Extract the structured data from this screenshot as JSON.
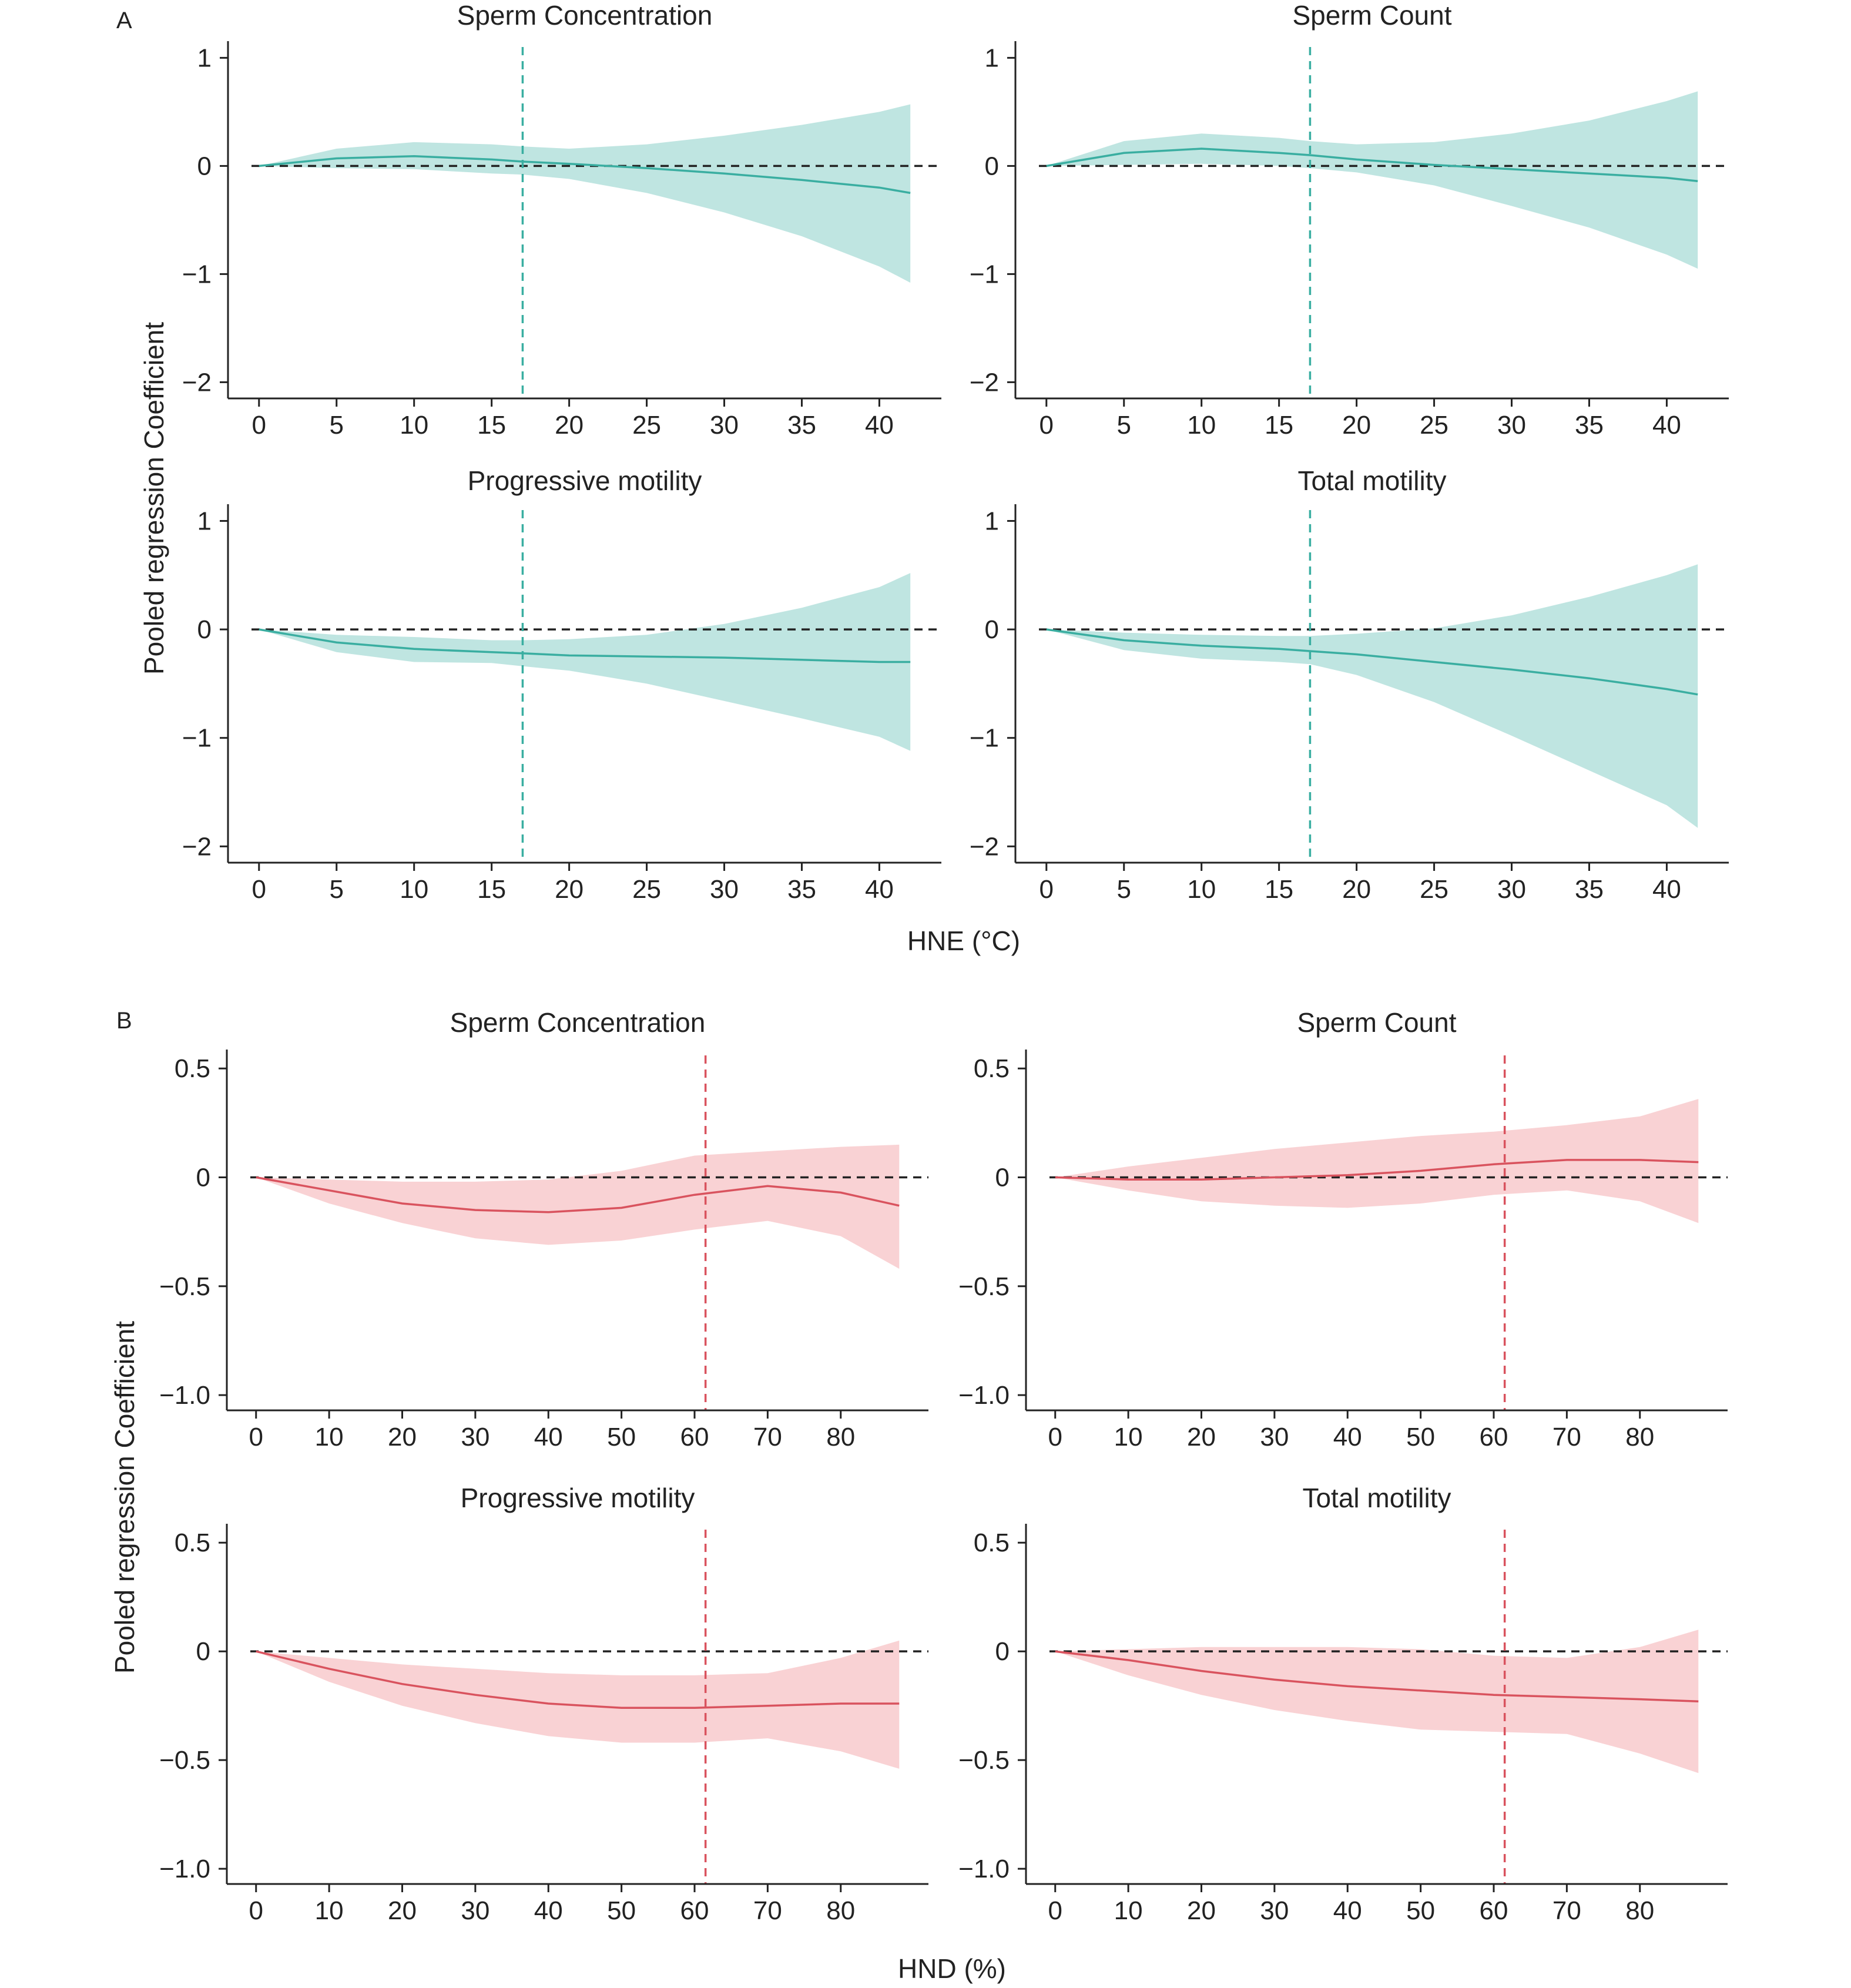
{
  "panels": [
    {
      "letter": "A",
      "shared_xlabel": "HNE (°C)",
      "shared_ylabel": "Pooled regression Coefficient",
      "theme": {
        "line": "#3aaea1",
        "band": "#bfe5e1",
        "vline": "#3aaea1"
      }
    },
    {
      "letter": "B",
      "shared_xlabel": "HND (%)",
      "shared_ylabel": "Pooled regression Coefficient",
      "theme": {
        "line": "#d9535e",
        "band": "#f9d2d4",
        "vline": "#d9535e"
      }
    }
  ],
  "chart_data": [
    {
      "type": "line",
      "panel": "A",
      "title": "Sperm Concentration",
      "xticks": [
        0,
        5,
        10,
        15,
        20,
        25,
        30,
        35,
        40
      ],
      "xlim": [
        -2,
        44
      ],
      "yticks": [
        1,
        0,
        -1,
        -2
      ],
      "ytick_labels": [
        "1",
        "0",
        "−1",
        "−2"
      ],
      "ylim": [
        -2.15,
        1.1
      ],
      "vline": 17,
      "hline": 0,
      "series": [
        {
          "x": [
            0,
            5,
            10,
            15,
            17,
            20,
            25,
            30,
            35,
            40,
            42
          ],
          "y": [
            0,
            0.07,
            0.09,
            0.06,
            0.04,
            0.02,
            -0.02,
            -0.07,
            -0.13,
            -0.2,
            -0.25
          ],
          "lower": [
            0,
            -0.02,
            -0.03,
            -0.07,
            -0.08,
            -0.12,
            -0.25,
            -0.43,
            -0.65,
            -0.93,
            -1.08
          ],
          "upper": [
            0,
            0.16,
            0.22,
            0.2,
            0.18,
            0.16,
            0.2,
            0.28,
            0.38,
            0.5,
            0.57
          ]
        }
      ]
    },
    {
      "type": "line",
      "panel": "A",
      "title": "Sperm Count",
      "xticks": [
        0,
        5,
        10,
        15,
        20,
        25,
        30,
        35,
        40
      ],
      "xlim": [
        -2,
        44
      ],
      "yticks": [
        1,
        0,
        -1,
        -2
      ],
      "ytick_labels": [
        "1",
        "0",
        "−1",
        "−2"
      ],
      "ylim": [
        -2.15,
        1.1
      ],
      "vline": 17,
      "hline": 0,
      "series": [
        {
          "x": [
            0,
            5,
            10,
            15,
            17,
            20,
            25,
            30,
            35,
            40,
            42
          ],
          "y": [
            0,
            0.12,
            0.16,
            0.12,
            0.1,
            0.06,
            0.01,
            -0.03,
            -0.07,
            -0.11,
            -0.14
          ],
          "lower": [
            0,
            0.01,
            0.02,
            0,
            -0.02,
            -0.06,
            -0.18,
            -0.37,
            -0.57,
            -0.82,
            -0.95
          ],
          "upper": [
            0,
            0.23,
            0.3,
            0.26,
            0.23,
            0.2,
            0.22,
            0.3,
            0.42,
            0.6,
            0.69
          ]
        }
      ]
    },
    {
      "type": "line",
      "panel": "A",
      "title": "Progressive motility",
      "xticks": [
        0,
        5,
        10,
        15,
        20,
        25,
        30,
        35,
        40
      ],
      "xlim": [
        -2,
        44
      ],
      "yticks": [
        1,
        0,
        -1,
        -2
      ],
      "ytick_labels": [
        "1",
        "0",
        "−1",
        "−2"
      ],
      "ylim": [
        -2.15,
        1.1
      ],
      "vline": 17,
      "hline": 0,
      "series": [
        {
          "x": [
            0,
            5,
            10,
            15,
            17,
            20,
            25,
            30,
            35,
            40,
            42
          ],
          "y": [
            0,
            -0.12,
            -0.18,
            -0.21,
            -0.22,
            -0.24,
            -0.25,
            -0.26,
            -0.28,
            -0.3,
            -0.3
          ],
          "lower": [
            0,
            -0.21,
            -0.3,
            -0.31,
            -0.34,
            -0.38,
            -0.5,
            -0.66,
            -0.82,
            -0.99,
            -1.12
          ],
          "upper": [
            0,
            -0.05,
            -0.07,
            -0.1,
            -0.1,
            -0.09,
            -0.05,
            0.05,
            0.2,
            0.39,
            0.52
          ]
        }
      ]
    },
    {
      "type": "line",
      "panel": "A",
      "title": "Total motility",
      "xticks": [
        0,
        5,
        10,
        15,
        20,
        25,
        30,
        35,
        40
      ],
      "xlim": [
        -2,
        44
      ],
      "yticks": [
        1,
        0,
        -1,
        -2
      ],
      "ytick_labels": [
        "1",
        "0",
        "−1",
        "−2"
      ],
      "ylim": [
        -2.15,
        1.1
      ],
      "vline": 17,
      "hline": 0,
      "series": [
        {
          "x": [
            0,
            5,
            10,
            15,
            17,
            20,
            25,
            30,
            35,
            40,
            42
          ],
          "y": [
            0,
            -0.1,
            -0.15,
            -0.18,
            -0.2,
            -0.23,
            -0.3,
            -0.37,
            -0.45,
            -0.55,
            -0.6
          ],
          "lower": [
            0,
            -0.19,
            -0.27,
            -0.3,
            -0.32,
            -0.42,
            -0.67,
            -0.98,
            -1.3,
            -1.62,
            -1.83
          ],
          "upper": [
            0,
            -0.03,
            -0.05,
            -0.06,
            -0.06,
            -0.04,
            0.01,
            0.13,
            0.3,
            0.5,
            0.6
          ]
        }
      ]
    },
    {
      "type": "line",
      "panel": "B",
      "title": "Sperm Concentration",
      "xticks": [
        0,
        10,
        20,
        30,
        40,
        50,
        60,
        70,
        80
      ],
      "xlim": [
        -4,
        92
      ],
      "yticks": [
        0.5,
        0,
        -0.5,
        -1.0
      ],
      "ytick_labels": [
        "0.5",
        "0",
        "−0.5",
        "−1.0"
      ],
      "ylim": [
        -1.07,
        0.56
      ],
      "vline": 61.5,
      "hline": 0,
      "series": [
        {
          "x": [
            0,
            10,
            20,
            30,
            40,
            50,
            60,
            70,
            80,
            88
          ],
          "y": [
            0,
            -0.06,
            -0.12,
            -0.15,
            -0.16,
            -0.14,
            -0.08,
            -0.04,
            -0.07,
            -0.13
          ],
          "lower": [
            0,
            -0.12,
            -0.21,
            -0.28,
            -0.31,
            -0.29,
            -0.24,
            -0.2,
            -0.27,
            -0.42
          ],
          "upper": [
            0,
            -0.01,
            -0.02,
            -0.02,
            -0.01,
            0.03,
            0.1,
            0.12,
            0.14,
            0.15
          ]
        }
      ]
    },
    {
      "type": "line",
      "panel": "B",
      "title": "Sperm Count",
      "xticks": [
        0,
        10,
        20,
        30,
        40,
        50,
        60,
        70,
        80
      ],
      "xlim": [
        -4,
        92
      ],
      "yticks": [
        0.5,
        0,
        -0.5,
        -1.0
      ],
      "ytick_labels": [
        "0.5",
        "0",
        "−0.5",
        "−1.0"
      ],
      "ylim": [
        -1.07,
        0.56
      ],
      "vline": 61.5,
      "hline": 0,
      "series": [
        {
          "x": [
            0,
            10,
            20,
            30,
            40,
            50,
            60,
            70,
            80,
            88
          ],
          "y": [
            0,
            -0.01,
            -0.01,
            0,
            0.01,
            0.03,
            0.06,
            0.08,
            0.08,
            0.07
          ],
          "lower": [
            0,
            -0.06,
            -0.11,
            -0.13,
            -0.14,
            -0.12,
            -0.08,
            -0.06,
            -0.11,
            -0.21
          ],
          "upper": [
            0,
            0.05,
            0.09,
            0.13,
            0.16,
            0.19,
            0.21,
            0.24,
            0.28,
            0.36
          ]
        }
      ]
    },
    {
      "type": "line",
      "panel": "B",
      "title": "Progressive motility",
      "xticks": [
        0,
        10,
        20,
        30,
        40,
        50,
        60,
        70,
        80
      ],
      "xlim": [
        -4,
        92
      ],
      "yticks": [
        0.5,
        0,
        -0.5,
        -1.0
      ],
      "ytick_labels": [
        "0.5",
        "0",
        "−0.5",
        "−1.0"
      ],
      "ylim": [
        -1.07,
        0.56
      ],
      "vline": 61.5,
      "hline": 0,
      "series": [
        {
          "x": [
            0,
            10,
            20,
            30,
            40,
            50,
            60,
            70,
            80,
            88
          ],
          "y": [
            0,
            -0.08,
            -0.15,
            -0.2,
            -0.24,
            -0.26,
            -0.26,
            -0.25,
            -0.24,
            -0.24
          ],
          "lower": [
            0,
            -0.14,
            -0.25,
            -0.33,
            -0.39,
            -0.42,
            -0.42,
            -0.4,
            -0.46,
            -0.54
          ],
          "upper": [
            0,
            -0.03,
            -0.06,
            -0.08,
            -0.1,
            -0.11,
            -0.11,
            -0.1,
            -0.03,
            0.05
          ]
        }
      ]
    },
    {
      "type": "line",
      "panel": "B",
      "title": "Total motility",
      "xticks": [
        0,
        10,
        20,
        30,
        40,
        50,
        60,
        70,
        80
      ],
      "xlim": [
        -4,
        92
      ],
      "yticks": [
        0.5,
        0,
        -0.5,
        -1.0
      ],
      "ytick_labels": [
        "0.5",
        "0",
        "−0.5",
        "−1.0"
      ],
      "ylim": [
        -1.07,
        0.56
      ],
      "vline": 61.5,
      "hline": 0,
      "series": [
        {
          "x": [
            0,
            10,
            20,
            30,
            40,
            50,
            60,
            70,
            80,
            88
          ],
          "y": [
            0,
            -0.04,
            -0.09,
            -0.13,
            -0.16,
            -0.18,
            -0.2,
            -0.21,
            -0.22,
            -0.23
          ],
          "lower": [
            0,
            -0.11,
            -0.2,
            -0.27,
            -0.32,
            -0.36,
            -0.37,
            -0.38,
            -0.47,
            -0.56
          ],
          "upper": [
            0,
            0.01,
            0.02,
            0.02,
            0.02,
            0.01,
            -0.02,
            -0.03,
            0.02,
            0.1
          ]
        }
      ]
    }
  ]
}
